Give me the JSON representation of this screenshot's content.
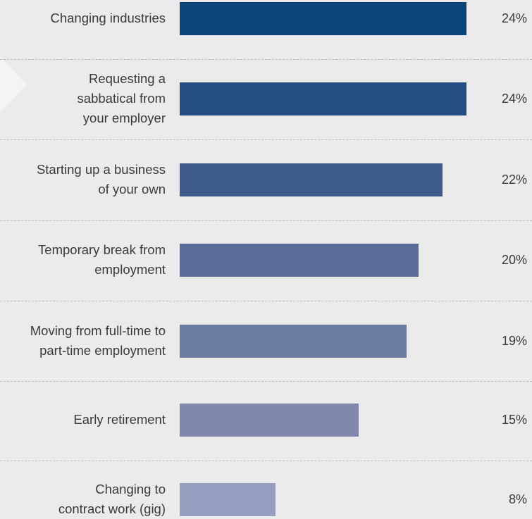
{
  "chart_data": {
    "type": "bar",
    "orientation": "horizontal",
    "categories": [
      "Changing industries",
      "Requesting a sabbatical from your employer",
      "Starting up a business of your own",
      "Temporary break from employment",
      "Moving from full-time to part-time employment",
      "Early retirement",
      "Changing to contract work (gig)"
    ],
    "category_lines": [
      [
        "Changing industries"
      ],
      [
        "Requesting a",
        "sabbatical from",
        "your employer"
      ],
      [
        "Starting up a business",
        "of your own"
      ],
      [
        "Temporary break from",
        "employment"
      ],
      [
        "Moving from full-time to",
        "part-time employment"
      ],
      [
        "Early retirement"
      ],
      [
        "Changing to",
        "contract work (gig)"
      ]
    ],
    "values": [
      24,
      24,
      22,
      20,
      19,
      15,
      8
    ],
    "value_labels": [
      "24%",
      "24%",
      "22%",
      "20%",
      "19%",
      "15%",
      "8%"
    ],
    "unit": "%",
    "xlim": [
      0,
      24
    ],
    "bar_colors": [
      "#0b4579",
      "#244d84",
      "#3f5b8c",
      "#586b99",
      "#6c7ca2",
      "#8089ad",
      "#969fbf"
    ],
    "background": "#ebebeb",
    "divider_color": "#b9b9b9",
    "text_color": "#3a3a3a",
    "arrow_color": "#f4f4f4",
    "grid": false,
    "legend": "none"
  }
}
